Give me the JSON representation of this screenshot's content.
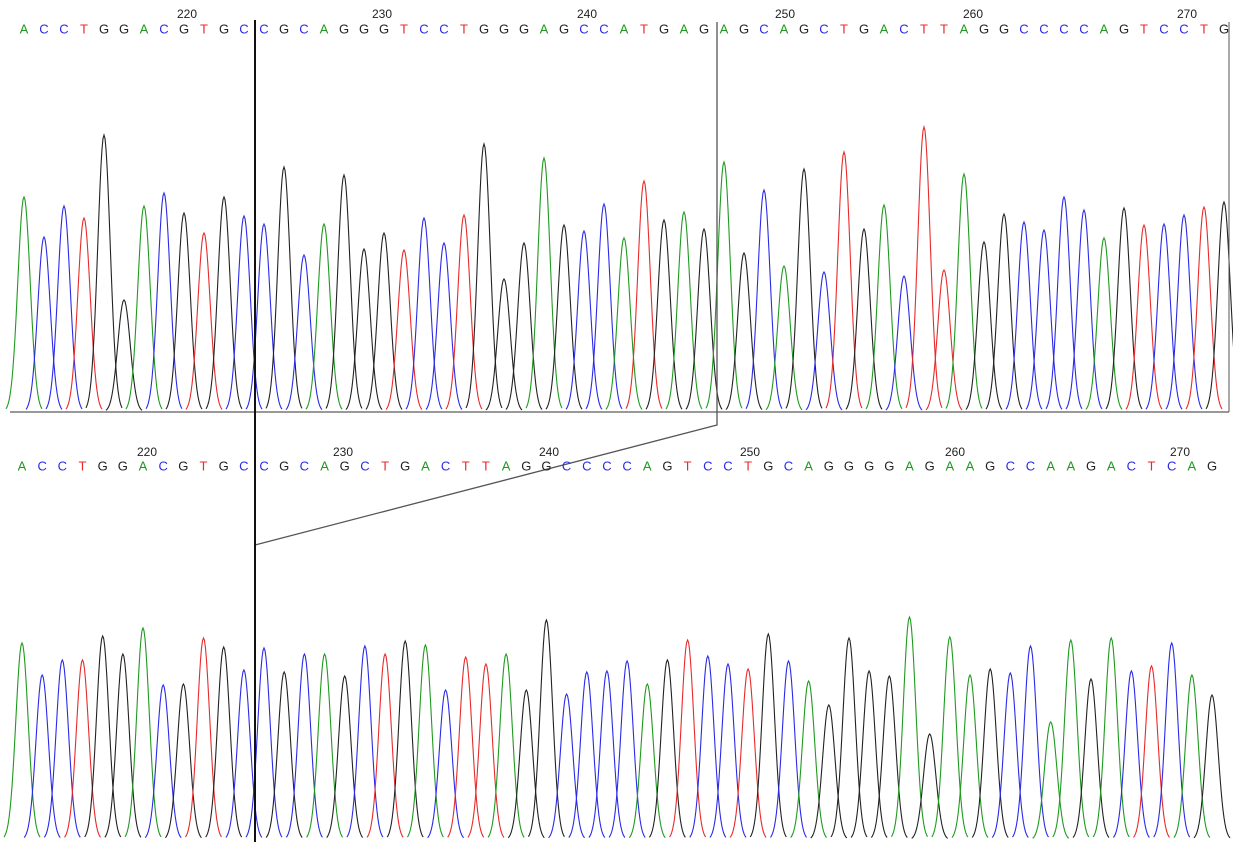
{
  "colors": {
    "A": "#1f9a1f",
    "C": "#2a2ae8",
    "G": "#222222",
    "T": "#e82a2a"
  },
  "traces": [
    {
      "sequence": "ACCTGGACGTGCCGCAGGGTCCTGGGAGCCATGAGAGCAGCTGACTTAGGCCCCAGTCCTG",
      "ticks": [
        220,
        230,
        240,
        250,
        260,
        270
      ],
      "peak_heights": [
        215,
        175,
        206,
        194,
        277,
        112,
        206,
        219,
        199,
        179,
        215,
        196,
        188,
        245,
        157,
        188,
        237,
        163,
        179,
        162,
        194,
        169,
        197,
        268,
        133,
        169,
        254,
        187,
        181,
        208,
        174,
        231,
        192,
        200,
        183,
        250,
        159,
        222,
        146,
        243,
        140,
        260,
        183,
        207,
        136,
        285,
        142,
        238,
        170,
        198,
        190,
        182,
        215,
        202,
        174,
        204,
        187,
        188,
        197,
        205,
        210
      ]
    },
    {
      "sequence": "ACCTGGACGTGCCGCAGCTGACTTAGGCCCCAGTCCTGCAGGGGAGAAGCCAAGACTCAG",
      "ticks": [
        220,
        230,
        240,
        250,
        260,
        270
      ],
      "peak_heights": [
        197,
        165,
        180,
        180,
        204,
        186,
        212,
        155,
        156,
        202,
        193,
        170,
        192,
        168,
        186,
        186,
        164,
        194,
        186,
        199,
        195,
        150,
        183,
        176,
        186,
        150,
        220,
        146,
        168,
        169,
        179,
        156,
        180,
        200,
        184,
        176,
        171,
        206,
        179,
        159,
        135,
        202,
        169,
        164,
        223,
        106,
        203,
        165,
        171,
        167,
        194,
        118,
        200,
        161,
        202,
        169,
        174,
        197,
        165,
        145
      ]
    }
  ]
}
